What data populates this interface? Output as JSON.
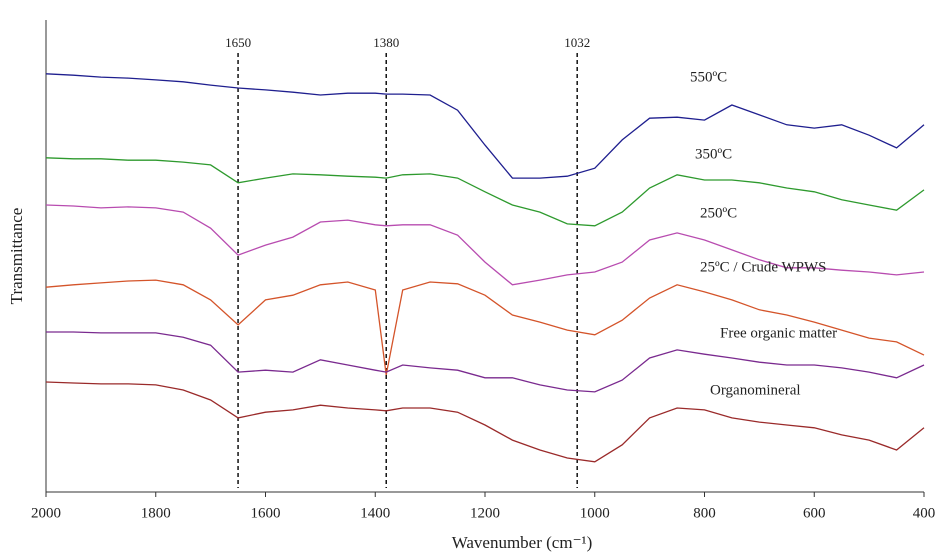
{
  "chart_data": {
    "type": "line",
    "x_label": "Wavenumber (cm⁻¹)",
    "y_label": "Transmittance",
    "xlim": [
      2000,
      400
    ],
    "xticks": [
      2000,
      1800,
      1600,
      1400,
      1200,
      1000,
      800,
      600,
      400
    ],
    "ylim": [
      0,
      100
    ],
    "reference_lines": [
      1650,
      1380,
      1032
    ],
    "x": [
      2000,
      1950,
      1900,
      1850,
      1800,
      1750,
      1700,
      1650,
      1600,
      1550,
      1500,
      1450,
      1400,
      1380,
      1350,
      1300,
      1250,
      1200,
      1150,
      1100,
      1050,
      1000,
      950,
      900,
      850,
      800,
      750,
      700,
      650,
      600,
      550,
      500,
      450,
      400
    ],
    "series": [
      {
        "name": "550ºC",
        "color": "#1f1f8f",
        "values": [
          88.6,
          88.3,
          87.9,
          87.7,
          87.3,
          86.9,
          86.2,
          85.6,
          85.2,
          84.7,
          84.1,
          84.5,
          84.5,
          84.3,
          84.3,
          84.1,
          80.9,
          73.5,
          66.5,
          66.5,
          66.9,
          68.6,
          74.6,
          79.2,
          79.4,
          78.8,
          82.0,
          79.9,
          77.8,
          77.1,
          77.8,
          75.6,
          72.9,
          77.8
        ]
      },
      {
        "name": "350ºC",
        "color": "#2e9a2e",
        "values": [
          70.8,
          70.6,
          70.6,
          70.3,
          70.3,
          69.9,
          69.3,
          65.5,
          66.5,
          67.4,
          67.2,
          66.9,
          66.7,
          66.5,
          67.2,
          67.4,
          66.5,
          63.6,
          60.8,
          59.3,
          56.8,
          56.4,
          59.3,
          64.4,
          67.2,
          66.1,
          66.1,
          65.5,
          64.4,
          63.6,
          61.9,
          60.8,
          59.7,
          64.0
        ]
      },
      {
        "name": "250ºC",
        "color": "#b84cb0",
        "values": [
          60.8,
          60.6,
          60.2,
          60.4,
          60.2,
          59.3,
          55.9,
          50.2,
          52.3,
          54.0,
          57.2,
          57.6,
          56.6,
          56.4,
          56.6,
          56.6,
          54.4,
          48.7,
          43.9,
          44.9,
          46.0,
          46.6,
          48.7,
          53.4,
          54.9,
          53.4,
          51.3,
          49.2,
          47.5,
          47.5,
          47.0,
          46.6,
          46.0,
          46.6
        ]
      },
      {
        "name": "25ºC / Crude WPWS",
        "color": "#d4542a",
        "values": [
          43.4,
          43.9,
          44.3,
          44.7,
          44.9,
          43.9,
          40.7,
          35.4,
          40.7,
          41.7,
          43.9,
          44.5,
          42.8,
          24.8,
          42.8,
          44.5,
          44.1,
          41.7,
          37.5,
          36.0,
          34.3,
          33.3,
          36.4,
          41.1,
          43.9,
          42.4,
          40.7,
          38.6,
          37.5,
          36.0,
          34.3,
          32.6,
          31.8,
          29.0
        ]
      },
      {
        "name": "Free organic matter",
        "color": "#7a2a8f",
        "values": [
          33.9,
          33.9,
          33.7,
          33.7,
          33.7,
          32.8,
          31.1,
          25.4,
          25.8,
          25.4,
          28.0,
          26.9,
          25.8,
          25.4,
          26.9,
          26.3,
          25.8,
          24.2,
          24.2,
          22.7,
          21.6,
          21.2,
          23.7,
          28.4,
          30.1,
          29.2,
          28.4,
          27.5,
          26.9,
          26.9,
          26.3,
          25.4,
          24.2,
          26.9
        ]
      },
      {
        "name": "Organomineral",
        "color": "#9a2a2a",
        "values": [
          23.3,
          23.1,
          22.9,
          22.9,
          22.7,
          21.6,
          19.5,
          15.7,
          16.9,
          17.4,
          18.4,
          17.8,
          17.4,
          17.2,
          17.8,
          17.8,
          16.9,
          14.2,
          11.0,
          8.9,
          7.2,
          6.4,
          10.0,
          15.7,
          17.8,
          17.4,
          15.7,
          14.8,
          14.2,
          13.6,
          12.1,
          11.0,
          8.9,
          13.6
        ]
      }
    ]
  }
}
